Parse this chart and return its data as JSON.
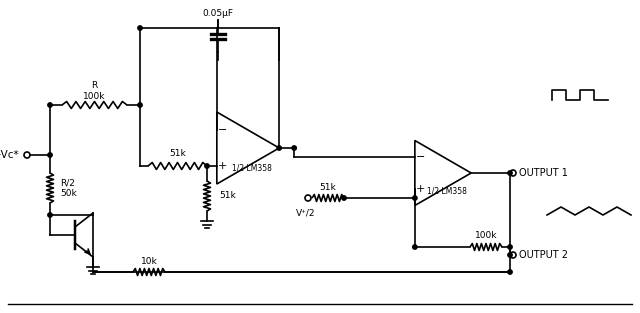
{
  "bg_color": "#ffffff",
  "line_color": "#000000",
  "line_width": 1.2,
  "figsize": [
    6.4,
    3.13
  ],
  "dpi": 100,
  "labels": {
    "R_100k": "R\n100k",
    "R2_50k": "R/2\n50k",
    "51k_h1": "51k",
    "51k_v": "51k",
    "51k_h2": "51k",
    "100k_fb": "100k",
    "10k": "10k",
    "cap": "0.05μF",
    "lm358_1": "1/2 LM358",
    "lm358_2": "1/2 LM358",
    "vc": "+Vᴄ*",
    "vplus": "V⁺/2",
    "out1": "OUTPUT 1",
    "out2": "OUTPUT 2"
  }
}
